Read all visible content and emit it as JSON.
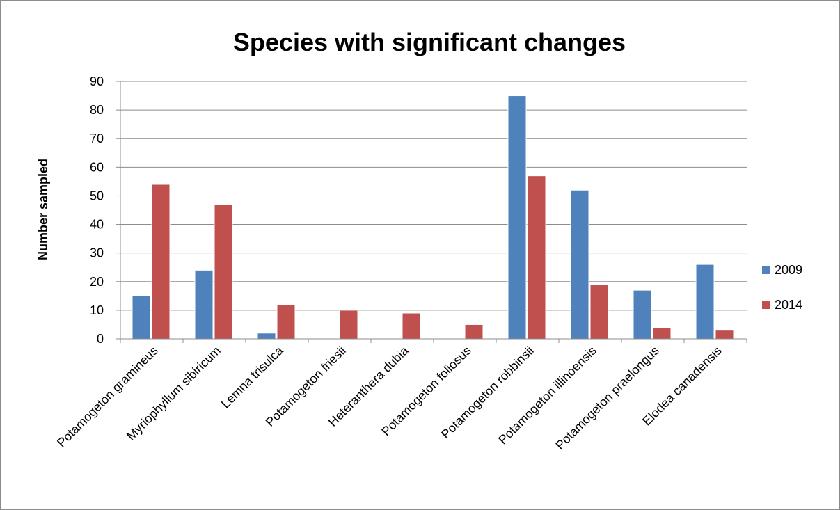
{
  "chart_data": {
    "type": "bar",
    "title": "Species with significant changes",
    "xlabel": "",
    "ylabel": "Number sampled",
    "ylim": [
      0,
      90
    ],
    "yticks": [
      0,
      10,
      20,
      30,
      40,
      50,
      60,
      70,
      80,
      90
    ],
    "grid": true,
    "legend_position": "right",
    "categories": [
      "Potamogeton gramineus",
      "Myriophyllum sibiricum",
      "Lemna trisulca",
      "Potamogeton friesii",
      "Heteranthera dubia",
      "Potamogeton foliosus",
      "Potamogeton robbinsii",
      "Potamogeton illinoensis",
      "Potamogeton praelongus",
      "Elodea canadensis"
    ],
    "series": [
      {
        "name": "2009",
        "color": "#4F81BD",
        "values": [
          15,
          24,
          2,
          0,
          0,
          0,
          85,
          52,
          17,
          26
        ]
      },
      {
        "name": "2014",
        "color": "#C0504D",
        "values": [
          54,
          47,
          12,
          10,
          9,
          5,
          57,
          19,
          4,
          3
        ]
      }
    ]
  }
}
